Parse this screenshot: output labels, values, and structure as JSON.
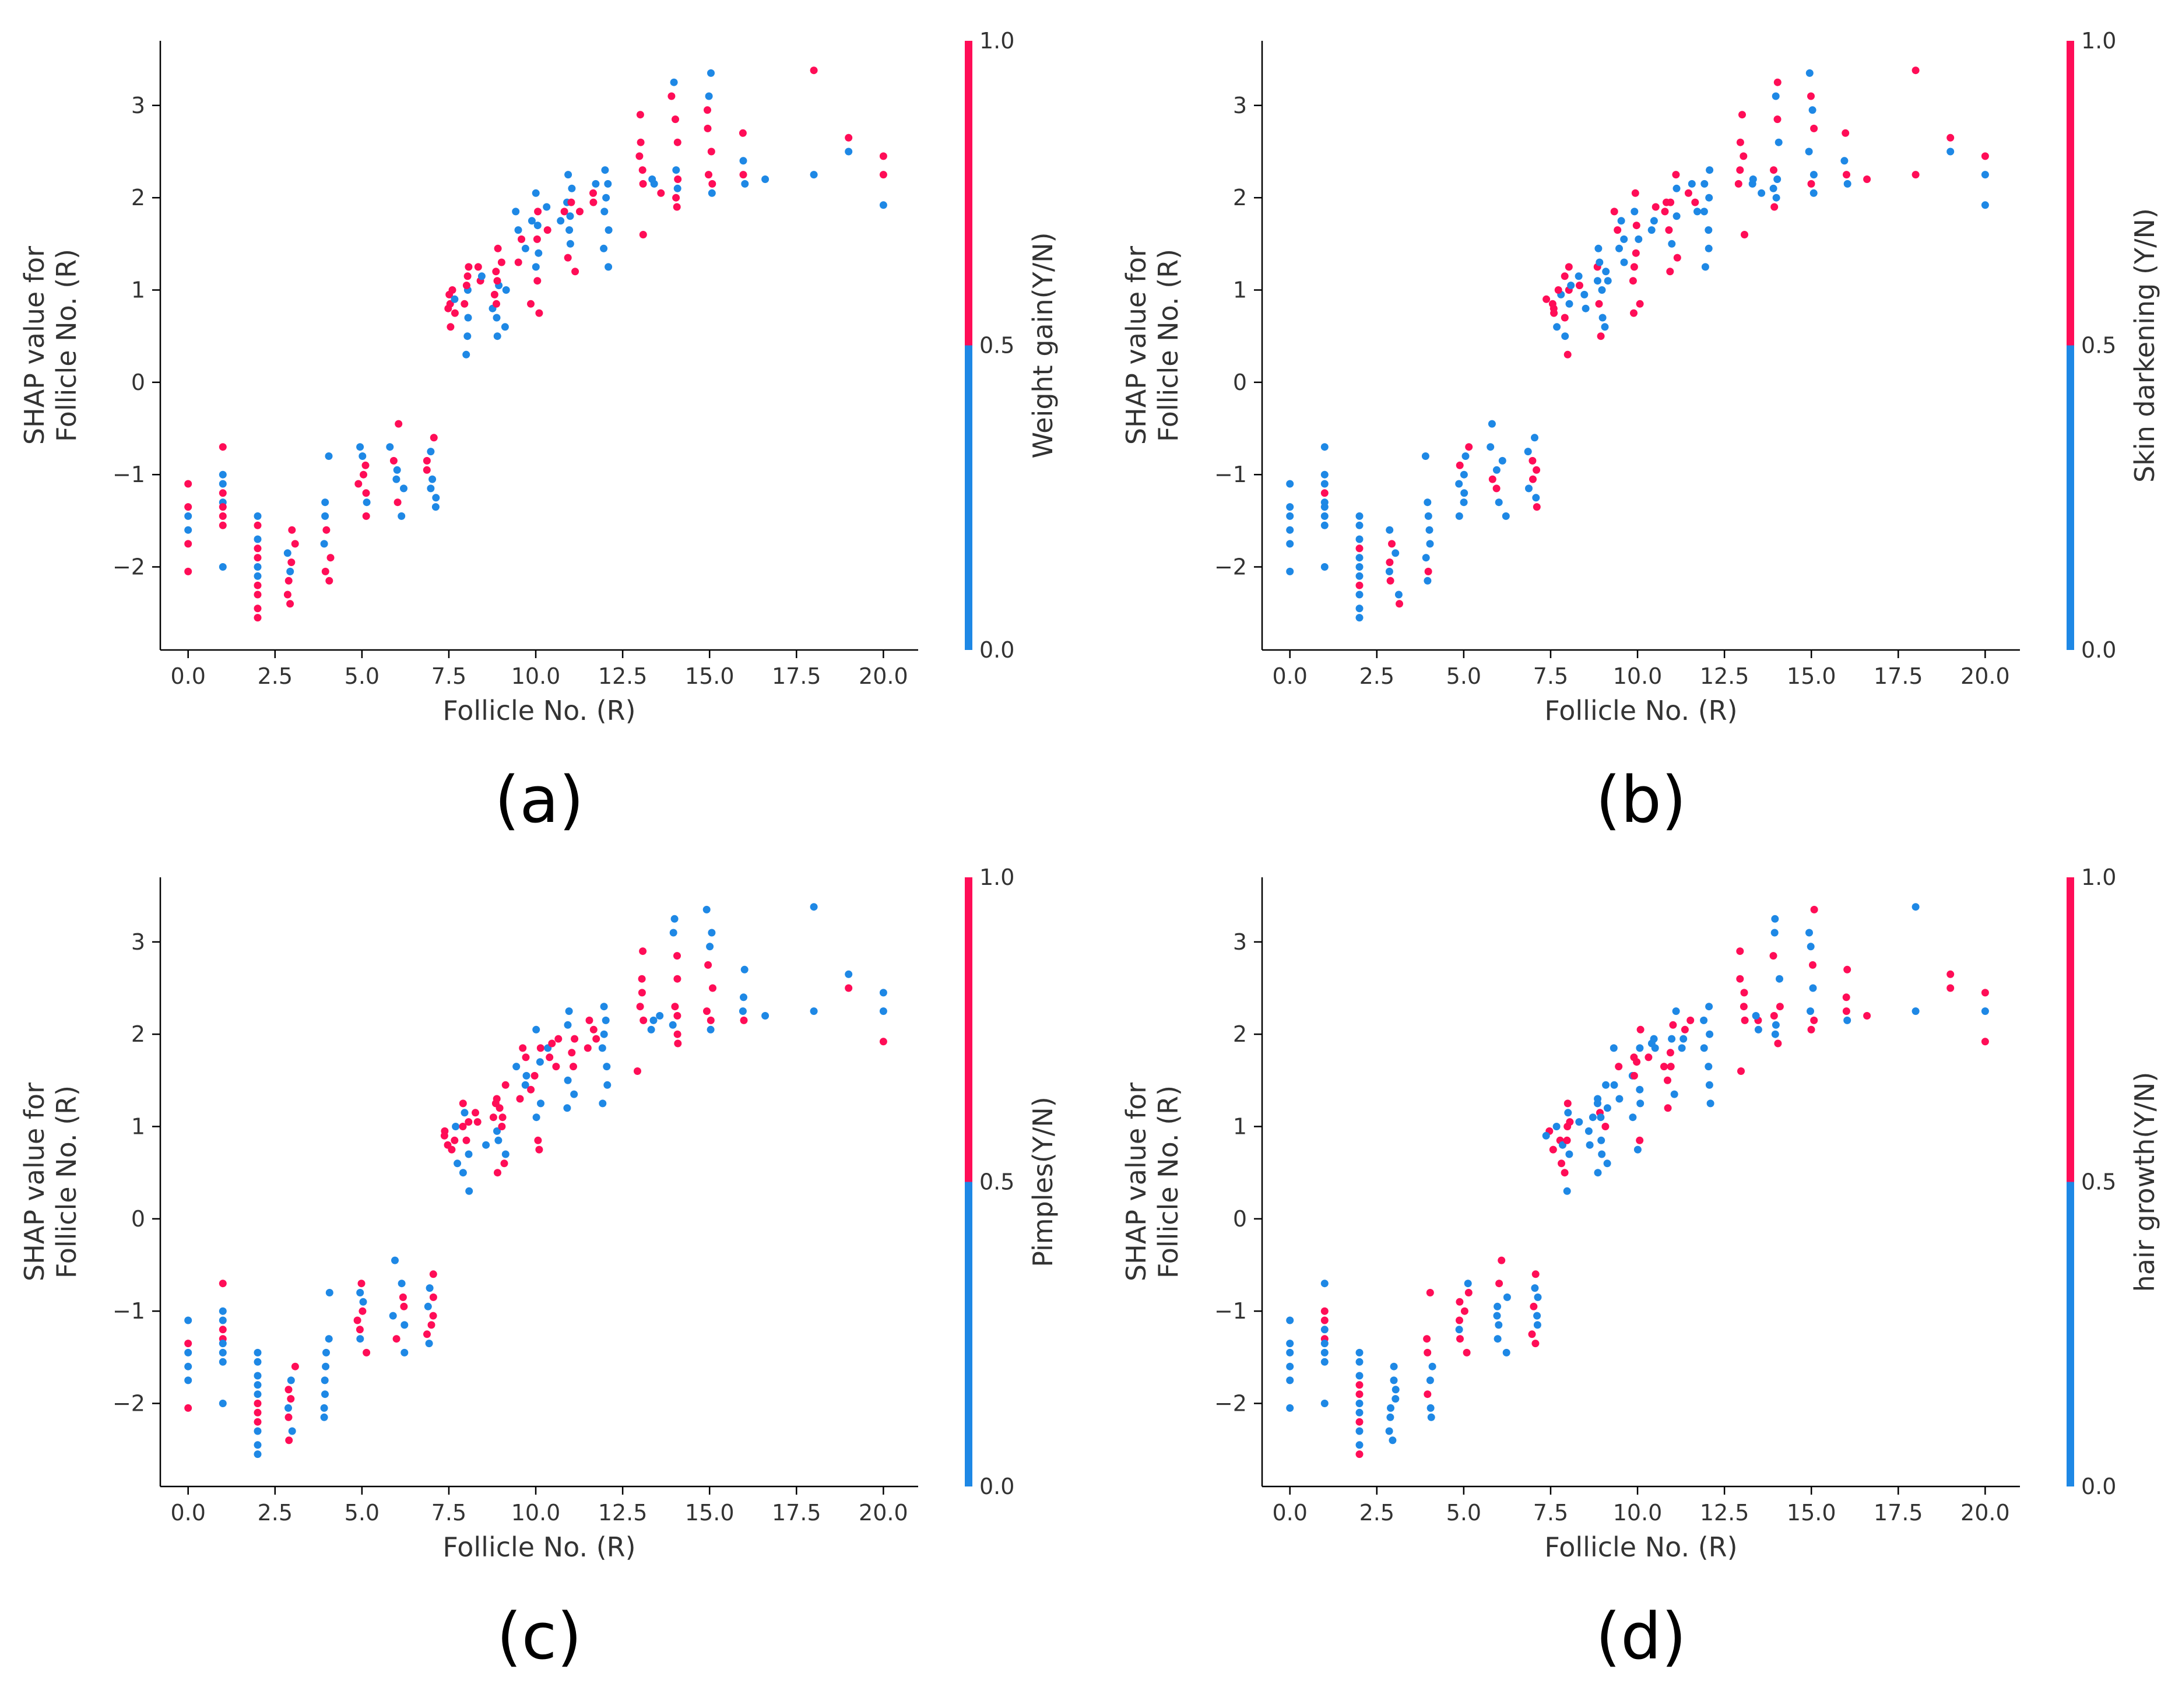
{
  "colors": {
    "feature_low": "#1E88E5",
    "feature_high": "#FF0D57",
    "axis": "#000000",
    "text": "#333333"
  },
  "chart_data": [
    {
      "type": "scatter",
      "label": "(a)",
      "xlabel": "Follicle No. (R)",
      "ylabel": [
        "SHAP value for",
        "Follicle No. (R)"
      ],
      "colorbar_label": "Weight gain(Y/N)",
      "xlim": [
        -0.8,
        21.0
      ],
      "ylim": [
        -2.9,
        3.7
      ],
      "xticks": [
        0,
        2.5,
        5,
        7.5,
        10,
        12.5,
        15,
        17.5,
        20
      ],
      "xtick_labels": [
        "0.0",
        "2.5",
        "5.0",
        "7.5",
        "10.0",
        "12.5",
        "15.0",
        "17.5",
        "20.0"
      ],
      "yticks": [
        -2,
        -1,
        0,
        1,
        2,
        3
      ],
      "ytick_labels": [
        "−2",
        "−1",
        "0",
        "1",
        "2",
        "3"
      ],
      "colorbar_ticks": [
        "0.0",
        "0.5",
        "1.0"
      ],
      "seed": 11,
      "high_fraction": [
        0.35,
        0.45,
        0.7,
        0.6,
        0.5,
        0.55,
        0.55,
        0.35,
        0.55,
        0.55,
        0.6,
        0.5,
        0.55,
        0.6,
        0.5,
        0.45,
        0.6,
        0,
        1,
        0.5
      ]
    },
    {
      "type": "scatter",
      "label": "(b)",
      "xlabel": "Follicle No. (R)",
      "ylabel": [
        "SHAP value for",
        "Follicle No. (R)"
      ],
      "colorbar_label": "Skin darkening (Y/N)",
      "xlim": [
        -0.8,
        21.0
      ],
      "ylim": [
        -2.9,
        3.7
      ],
      "xticks": [
        0,
        2.5,
        5,
        7.5,
        10,
        12.5,
        15,
        17.5,
        20
      ],
      "xtick_labels": [
        "0.0",
        "2.5",
        "5.0",
        "7.5",
        "10.0",
        "12.5",
        "15.0",
        "17.5",
        "20.0"
      ],
      "yticks": [
        -2,
        -1,
        0,
        1,
        2,
        3
      ],
      "ytick_labels": [
        "−2",
        "−1",
        "0",
        "1",
        "2",
        "3"
      ],
      "colorbar_ticks": [
        "0.0",
        "0.5",
        "1.0"
      ],
      "seed": 23,
      "high_fraction": [
        0.0,
        0.1,
        0.3,
        0.35,
        0.4,
        0.45,
        0.4,
        0.6,
        0.55,
        0.55,
        0.6,
        0.55,
        0.6,
        0.55,
        0.4,
        0.5,
        0.6,
        0,
        1,
        0.5
      ]
    },
    {
      "type": "scatter",
      "label": "(c)",
      "xlabel": "Follicle No. (R)",
      "ylabel": [
        "SHAP value for",
        "Follicle No. (R)"
      ],
      "colorbar_label": "Pimples(Y/N)",
      "xlim": [
        -0.8,
        21.0
      ],
      "ylim": [
        -2.9,
        3.7
      ],
      "xticks": [
        0,
        2.5,
        5,
        7.5,
        10,
        12.5,
        15,
        17.5,
        20
      ],
      "xtick_labels": [
        "0.0",
        "2.5",
        "5.0",
        "7.5",
        "10.0",
        "12.5",
        "15.0",
        "17.5",
        "20.0"
      ],
      "yticks": [
        -2,
        -1,
        0,
        1,
        2,
        3
      ],
      "ytick_labels": [
        "−2",
        "−1",
        "0",
        "1",
        "2",
        "3"
      ],
      "colorbar_ticks": [
        "0.0",
        "0.5",
        "1.0"
      ],
      "seed": 37,
      "high_fraction": [
        0.15,
        0.55,
        0.55,
        0.5,
        0.4,
        0.6,
        0.55,
        0.65,
        0.65,
        0.6,
        0.65,
        0.6,
        0.65,
        0.6,
        0.5,
        0.5,
        0.6,
        0,
        1,
        0.5
      ]
    },
    {
      "type": "scatter",
      "label": "(d)",
      "xlabel": "Follicle No. (R)",
      "ylabel": [
        "SHAP value for",
        "Follicle No. (R)"
      ],
      "colorbar_label": "hair growth(Y/N)",
      "xlim": [
        -0.8,
        21.0
      ],
      "ylim": [
        -2.9,
        3.7
      ],
      "xticks": [
        0,
        2.5,
        5,
        7.5,
        10,
        12.5,
        15,
        17.5,
        20
      ],
      "xtick_labels": [
        "0.0",
        "2.5",
        "5.0",
        "7.5",
        "10.0",
        "12.5",
        "15.0",
        "17.5",
        "20.0"
      ],
      "yticks": [
        -2,
        -1,
        0,
        1,
        2,
        3
      ],
      "ytick_labels": [
        "−2",
        "−1",
        "0",
        "1",
        "2",
        "3"
      ],
      "colorbar_ticks": [
        "0.0",
        "0.5",
        "1.0"
      ],
      "seed": 51,
      "high_fraction": [
        0.0,
        0.35,
        0.15,
        0.25,
        0.35,
        0.3,
        0.35,
        0.45,
        0.55,
        0.4,
        0.4,
        0.35,
        0.4,
        0.4,
        0.35,
        0.4,
        0.5,
        0,
        1,
        0.5
      ]
    }
  ],
  "point_groups": [
    {
      "x": 0,
      "y": [
        -1.1,
        -1.35,
        -1.45,
        -1.6,
        -1.75,
        -2.05
      ],
      "jitter": 0.0
    },
    {
      "x": 1,
      "y": [
        -0.7,
        -1.0,
        -1.1,
        -1.2,
        -1.3,
        -1.35,
        -1.45,
        -1.55,
        -2.0
      ],
      "jitter": 0.0
    },
    {
      "x": 2,
      "y": [
        -1.45,
        -1.55,
        -1.7,
        -1.8,
        -1.9,
        -2.0,
        -2.1,
        -2.2,
        -2.3,
        -2.45,
        -2.55
      ],
      "jitter": 0.0
    },
    {
      "x": 3,
      "y": [
        -1.6,
        -1.75,
        -1.85,
        -1.95,
        -2.05,
        -2.15,
        -2.3,
        -2.4
      ],
      "jitter": 0.15
    },
    {
      "x": 4,
      "y": [
        -0.8,
        -1.3,
        -1.45,
        -1.6,
        -1.75,
        -1.9,
        -2.05,
        -2.15
      ],
      "jitter": 0.1
    },
    {
      "x": 5,
      "y": [
        -0.7,
        -0.8,
        -0.9,
        -1.0,
        -1.1,
        -1.2,
        -1.3,
        -1.45
      ],
      "jitter": 0.15
    },
    {
      "x": 6,
      "y": [
        -0.45,
        -0.7,
        -0.85,
        -0.95,
        -1.05,
        -1.15,
        -1.3,
        -1.45
      ],
      "jitter": 0.25
    },
    {
      "x": 7,
      "y": [
        -0.6,
        -0.75,
        -0.85,
        -0.95,
        -1.05,
        -1.15,
        -1.25,
        -1.35
      ],
      "jitter": 0.15
    },
    {
      "x": 7.6,
      "y": [
        0.6,
        0.75,
        0.85,
        0.95,
        1.0,
        0.9,
        0.8
      ],
      "jitter": 0.25
    },
    {
      "x": 8,
      "y": [
        0.3,
        0.5,
        0.7,
        0.85,
        1.0,
        1.05,
        1.15,
        1.25
      ],
      "jitter": 0.1
    },
    {
      "x": 8.6,
      "y": [
        0.8,
        0.95,
        1.05,
        1.1,
        1.15,
        1.25
      ],
      "jitter": 0.35
    },
    {
      "x": 9,
      "y": [
        0.5,
        0.6,
        0.7,
        0.85,
        1.0,
        1.1,
        1.2,
        1.3,
        1.45
      ],
      "jitter": 0.15
    },
    {
      "x": 9.6,
      "y": [
        1.3,
        1.45,
        1.55,
        1.65,
        1.75,
        1.85
      ],
      "jitter": 0.3
    },
    {
      "x": 10,
      "y": [
        0.75,
        0.85,
        1.1,
        1.25,
        1.4,
        1.55,
        1.7,
        1.85,
        2.05
      ],
      "jitter": 0.15
    },
    {
      "x": 10.6,
      "y": [
        1.65,
        1.75,
        1.85,
        1.9,
        1.95
      ],
      "jitter": 0.3
    },
    {
      "x": 11,
      "y": [
        1.2,
        1.35,
        1.5,
        1.65,
        1.8,
        1.95,
        2.1,
        2.25
      ],
      "jitter": 0.15
    },
    {
      "x": 11.5,
      "y": [
        1.85,
        1.95,
        2.05,
        2.15
      ],
      "jitter": 0.25
    },
    {
      "x": 12,
      "y": [
        1.25,
        1.45,
        1.65,
        1.85,
        2.0,
        2.15,
        2.3
      ],
      "jitter": 0.1
    },
    {
      "x": 13,
      "y": [
        1.6,
        2.15,
        2.3,
        2.45,
        2.6,
        2.9
      ],
      "jitter": 0.1
    },
    {
      "x": 13.5,
      "y": [
        2.05,
        2.15,
        2.2
      ],
      "jitter": 0.2
    },
    {
      "x": 14,
      "y": [
        1.9,
        2.0,
        2.1,
        2.2,
        2.3,
        2.6,
        2.85,
        3.1,
        3.25
      ],
      "jitter": 0.1
    },
    {
      "x": 15,
      "y": [
        2.05,
        2.15,
        2.25,
        2.5,
        2.75,
        2.95,
        3.1,
        3.35
      ],
      "jitter": 0.1
    },
    {
      "x": 16,
      "y": [
        2.15,
        2.25,
        2.4,
        2.7
      ],
      "jitter": 0.05
    },
    {
      "x": 16.6,
      "y": [
        2.2
      ],
      "jitter": 0.0
    },
    {
      "x": 18,
      "y": [
        2.25,
        3.38
      ],
      "jitter": 0.0
    },
    {
      "x": 19,
      "y": [
        2.5,
        2.65
      ],
      "jitter": 0.0
    },
    {
      "x": 20,
      "y": [
        1.92,
        2.25,
        2.45
      ],
      "jitter": 0.0
    }
  ]
}
